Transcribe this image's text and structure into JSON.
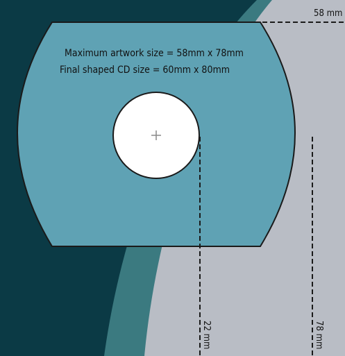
{
  "labels": {
    "max_artwork": "Maximum artwork size = 58mm x 78mm",
    "final_size": "Final shaped CD size = 60mm x 80mm"
  },
  "dimensions": {
    "width": "58 mm",
    "hole_offset": "22 mm",
    "height": "78 mm"
  }
}
